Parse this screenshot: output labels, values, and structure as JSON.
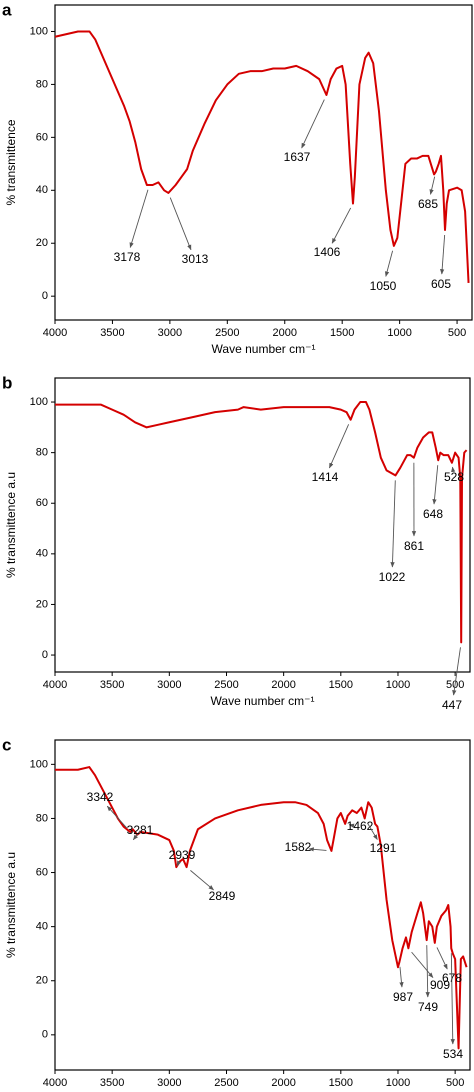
{
  "chart_data": [
    {
      "type": "line",
      "label": "a",
      "xlabel": "Wave number cm⁻¹",
      "ylabel": "% transmittence",
      "xlim": [
        4000,
        370
      ],
      "ylim": [
        -9,
        110
      ],
      "xticks": [
        4000,
        3500,
        3000,
        2500,
        2000,
        1500,
        1000,
        500
      ],
      "yticks": [
        0,
        20,
        40,
        60,
        80,
        100
      ],
      "x": [
        4000,
        3900,
        3800,
        3700,
        3650,
        3600,
        3500,
        3400,
        3350,
        3300,
        3250,
        3200,
        3150,
        3100,
        3050,
        3013,
        2950,
        2900,
        2850,
        2800,
        2700,
        2600,
        2500,
        2400,
        2300,
        2200,
        2100,
        2000,
        1900,
        1800,
        1700,
        1637,
        1600,
        1550,
        1500,
        1470,
        1430,
        1406,
        1390,
        1350,
        1300,
        1270,
        1230,
        1180,
        1120,
        1080,
        1050,
        1020,
        980,
        950,
        900,
        850,
        800,
        750,
        700,
        685,
        660,
        640,
        620,
        605,
        590,
        570,
        500,
        460,
        430,
        400
      ],
      "series": [
        {
          "color": "#d40000",
          "values": [
            98,
            99,
            100,
            100,
            97,
            92,
            82,
            72,
            66,
            58,
            48,
            42,
            42,
            43,
            40,
            39,
            42,
            45,
            48,
            55,
            65,
            74,
            80,
            84,
            85,
            85,
            86,
            86,
            87,
            85,
            82,
            76,
            82,
            86,
            87,
            80,
            50,
            35,
            45,
            80,
            90,
            92,
            88,
            70,
            40,
            25,
            19,
            22,
            38,
            50,
            52,
            52,
            53,
            53,
            46,
            47,
            50,
            53,
            40,
            25,
            35,
            40,
            41,
            40,
            32,
            5
          ]
        }
      ],
      "annotations": [
        3178,
        3013,
        1637,
        1406,
        1050,
        685,
        605
      ]
    },
    {
      "type": "line",
      "label": "b",
      "xlabel": "Wave number cm⁻¹",
      "ylabel": "% transmittence a.u",
      "xlim": [
        4000,
        370
      ],
      "ylim": [
        -6.7,
        109.5
      ],
      "xticks": [
        4000,
        3500,
        3000,
        2500,
        2000,
        1500,
        1000,
        500
      ],
      "yticks": [
        0,
        20,
        40,
        60,
        80,
        100
      ],
      "x": [
        4000,
        3800,
        3600,
        3500,
        3400,
        3300,
        3200,
        3100,
        3000,
        2800,
        2600,
        2400,
        2350,
        2200,
        2000,
        1800,
        1600,
        1500,
        1450,
        1414,
        1380,
        1330,
        1280,
        1250,
        1200,
        1150,
        1100,
        1022,
        980,
        920,
        890,
        861,
        830,
        780,
        730,
        700,
        670,
        648,
        630,
        600,
        560,
        528,
        500,
        470,
        455,
        447,
        440,
        420,
        400
      ],
      "series": [
        {
          "color": "#d40000",
          "values": [
            99,
            99,
            99,
            97,
            95,
            92,
            90,
            91,
            92,
            94,
            96,
            97,
            98,
            97,
            98,
            98,
            98,
            97,
            96,
            93,
            97,
            100,
            100,
            97,
            88,
            78,
            73,
            71,
            74,
            79,
            79,
            78,
            82,
            86,
            88,
            88,
            82,
            77,
            80,
            79,
            79,
            76,
            80,
            78,
            70,
            5,
            70,
            80,
            81
          ]
        }
      ],
      "annotations": [
        1414,
        1022,
        861,
        648,
        528,
        447
      ]
    },
    {
      "type": "line",
      "label": "c",
      "xlabel": "Wave number cm⁻¹",
      "ylabel": "% transmittence a.u",
      "xlim": [
        4000,
        370
      ],
      "ylim": [
        -13,
        109
      ],
      "xticks": [
        4000,
        3500,
        3000,
        2500,
        2000,
        1500,
        1000,
        500
      ],
      "yticks": [
        0,
        20,
        40,
        60,
        80,
        100
      ],
      "x": [
        4000,
        3800,
        3700,
        3650,
        3550,
        3450,
        3400,
        3342,
        3320,
        3281,
        3250,
        3100,
        3000,
        2960,
        2939,
        2910,
        2880,
        2849,
        2820,
        2750,
        2600,
        2400,
        2200,
        2000,
        1900,
        1800,
        1700,
        1650,
        1620,
        1582,
        1560,
        1530,
        1500,
        1462,
        1440,
        1400,
        1360,
        1320,
        1291,
        1260,
        1230,
        1200,
        1180,
        1150,
        1100,
        1050,
        1000,
        987,
        960,
        930,
        909,
        880,
        830,
        800,
        780,
        749,
        730,
        700,
        678,
        660,
        620,
        580,
        560,
        540,
        534,
        520,
        500,
        470,
        450,
        430,
        400
      ],
      "series": [
        {
          "color": "#d40000",
          "values": [
            98,
            98,
            99,
            96,
            88,
            80,
            77,
            75,
            76,
            74,
            75,
            74,
            72,
            68,
            62,
            64,
            65,
            62,
            68,
            76,
            80,
            83,
            85,
            86,
            86,
            85,
            82,
            78,
            72,
            68,
            73,
            80,
            82,
            78,
            81,
            83,
            82,
            84,
            80,
            86,
            84,
            78,
            77,
            70,
            50,
            35,
            25,
            27,
            32,
            36,
            32,
            38,
            45,
            49,
            45,
            35,
            42,
            40,
            34,
            40,
            44,
            46,
            48,
            40,
            32,
            30,
            28,
            -5,
            28,
            29,
            25
          ]
        }
      ],
      "annotations": [
        3342,
        3281,
        2939,
        2849,
        1582,
        1462,
        1291,
        987,
        909,
        749,
        678,
        534
      ]
    }
  ]
}
